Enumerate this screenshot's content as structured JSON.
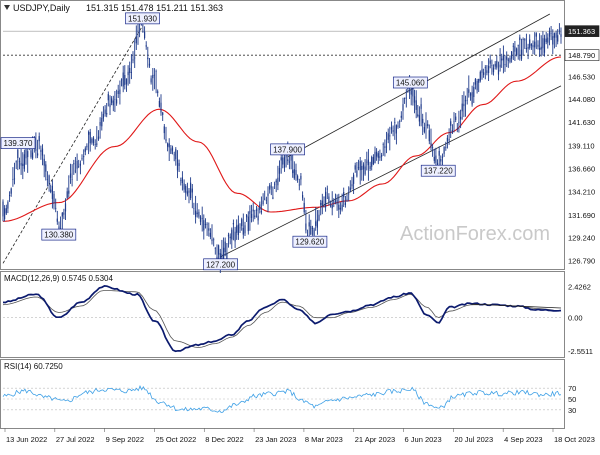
{
  "header": {
    "symbol": "USDJPY,Daily",
    "ohlc": "151.315 151.478 151.211 151.363"
  },
  "watermark": "ActionForex.com",
  "colors": {
    "candle": "#1e3a8a",
    "ma": "#e01818",
    "channel": "#222222",
    "macd": "#0b1a6e",
    "signal": "#555555",
    "rsi": "#3ea0e6",
    "grid": "#bbbbbb",
    "label_box_fill": "#eef0ff",
    "label_box_border": "#1a2a8a"
  },
  "chart_data": [
    {
      "type": "candlestick",
      "panel": "price",
      "title": "USDJPY,Daily",
      "y_ticks": [
        126.79,
        129.24,
        131.69,
        134.21,
        136.66,
        139.11,
        141.63,
        144.08,
        146.53,
        148.79,
        151.363
      ],
      "y_tick_labels": [
        "126.790",
        "129.240",
        "131.690",
        "134.210",
        "136.660",
        "139.110",
        "141.630",
        "144.080",
        "146.530",
        "148.790",
        "151.363"
      ],
      "ylim": [
        126.0,
        153.2
      ],
      "current_price": 151.363,
      "current_price_label": "151.363",
      "resistance_level": 148.79,
      "resistance_label": "148.790",
      "x_labels": [
        "13 Jun 2022",
        "27 Jul 2022",
        "9 Sep 2022",
        "25 Oct 2022",
        "8 Dec 2022",
        "23 Jan 2023",
        "8 Mar 2023",
        "21 Apr 2023",
        "6 Jun 2023",
        "20 Jul 2023",
        "4 Sep 2023",
        "18 Oct 2023"
      ],
      "x_index_range": [
        0,
        100
      ],
      "anchors": [
        [
          0,
          131.8
        ],
        [
          3,
          137.5
        ],
        [
          6,
          139.37
        ],
        [
          9,
          134.0
        ],
        [
          10,
          130.38
        ],
        [
          13,
          137.0
        ],
        [
          16,
          139.5
        ],
        [
          19,
          143.5
        ],
        [
          22,
          146.0
        ],
        [
          25,
          151.93
        ],
        [
          27,
          146.0
        ],
        [
          30,
          139.0
        ],
        [
          33,
          134.0
        ],
        [
          36,
          131.0
        ],
        [
          39,
          127.2
        ],
        [
          42,
          130.0
        ],
        [
          45,
          131.5
        ],
        [
          48,
          134.0
        ],
        [
          51,
          137.9
        ],
        [
          53,
          135.5
        ],
        [
          55,
          129.62
        ],
        [
          58,
          133.5
        ],
        [
          61,
          133.0
        ],
        [
          64,
          137.0
        ],
        [
          67,
          137.5
        ],
        [
          70,
          140.5
        ],
        [
          73,
          145.06
        ],
        [
          76,
          141.0
        ],
        [
          78,
          137.22
        ],
        [
          81,
          141.5
        ],
        [
          84,
          145.0
        ],
        [
          87,
          147.5
        ],
        [
          90,
          148.0
        ],
        [
          93,
          149.5
        ],
        [
          96,
          150.0
        ],
        [
          98,
          150.5
        ],
        [
          100,
          151.363
        ]
      ],
      "ma_anchors": [
        [
          0,
          131.0
        ],
        [
          10,
          133.0
        ],
        [
          20,
          139.0
        ],
        [
          28,
          143.0
        ],
        [
          35,
          139.5
        ],
        [
          42,
          134.0
        ],
        [
          48,
          132.0
        ],
        [
          56,
          132.5
        ],
        [
          62,
          133.2
        ],
        [
          68,
          135.0
        ],
        [
          74,
          138.0
        ],
        [
          80,
          140.5
        ],
        [
          86,
          143.5
        ],
        [
          92,
          146.0
        ],
        [
          100,
          148.6
        ]
      ],
      "channel_lines": [
        {
          "from": [
            0,
            126.5
          ],
          "to": [
            25,
            151.93
          ]
        },
        {
          "from": [
            39,
            127.2
          ],
          "to": [
            100,
            145.5
          ]
        },
        {
          "from": [
            51,
            137.9
          ],
          "to": [
            98,
            153.2
          ]
        }
      ],
      "annotations": [
        {
          "label": "151.930",
          "x": 25,
          "y": 151.93,
          "side": "above"
        },
        {
          "label": "139.370",
          "x": 6,
          "y": 139.37,
          "side": "left"
        },
        {
          "label": "130.380",
          "x": 10,
          "y": 130.38,
          "side": "below"
        },
        {
          "label": "127.200",
          "x": 39,
          "y": 127.2,
          "side": "below"
        },
        {
          "label": "137.900",
          "x": 51,
          "y": 137.9,
          "side": "above"
        },
        {
          "label": "129.620",
          "x": 55,
          "y": 129.62,
          "side": "below"
        },
        {
          "label": "145.060",
          "x": 73,
          "y": 145.06,
          "side": "above"
        },
        {
          "label": "137.220",
          "x": 78,
          "y": 137.22,
          "side": "below"
        }
      ]
    },
    {
      "type": "line",
      "panel": "macd",
      "title": "MACD(12,26,9) 0.5745 0.5304",
      "ylim": [
        -2.8,
        2.6
      ],
      "y_tick_labels": [
        "2.4262",
        "0.00",
        "-2.5511"
      ],
      "y_ticks": [
        2.4262,
        0.0,
        -2.5511
      ],
      "series": [
        {
          "name": "MACD",
          "anchors": [
            [
              0,
              1.2
            ],
            [
              6,
              1.8
            ],
            [
              10,
              0.0
            ],
            [
              14,
              1.2
            ],
            [
              18,
              2.4
            ],
            [
              24,
              1.8
            ],
            [
              27,
              -0.2
            ],
            [
              31,
              -2.55
            ],
            [
              35,
              -2.1
            ],
            [
              38,
              -1.8
            ],
            [
              41,
              -1.3
            ],
            [
              44,
              -0.2
            ],
            [
              47,
              0.8
            ],
            [
              50,
              1.4
            ],
            [
              53,
              0.6
            ],
            [
              56,
              -0.4
            ],
            [
              59,
              0.3
            ],
            [
              62,
              0.5
            ],
            [
              66,
              1.0
            ],
            [
              70,
              1.6
            ],
            [
              73,
              1.9
            ],
            [
              76,
              0.2
            ],
            [
              78,
              -0.4
            ],
            [
              80,
              0.8
            ],
            [
              84,
              1.1
            ],
            [
              88,
              1.0
            ],
            [
              92,
              0.9
            ],
            [
              96,
              0.6
            ],
            [
              100,
              0.5745
            ]
          ]
        },
        {
          "name": "Signal",
          "anchors": [
            [
              0,
              1.0
            ],
            [
              6,
              1.6
            ],
            [
              10,
              0.4
            ],
            [
              14,
              0.9
            ],
            [
              18,
              2.1
            ],
            [
              24,
              2.0
            ],
            [
              27,
              0.6
            ],
            [
              31,
              -1.8
            ],
            [
              35,
              -2.3
            ],
            [
              38,
              -2.0
            ],
            [
              41,
              -1.5
            ],
            [
              44,
              -0.6
            ],
            [
              47,
              0.4
            ],
            [
              50,
              1.2
            ],
            [
              53,
              0.9
            ],
            [
              56,
              0.0
            ],
            [
              59,
              0.0
            ],
            [
              62,
              0.4
            ],
            [
              66,
              0.8
            ],
            [
              70,
              1.4
            ],
            [
              73,
              1.8
            ],
            [
              76,
              0.8
            ],
            [
              78,
              0.0
            ],
            [
              80,
              0.5
            ],
            [
              84,
              1.0
            ],
            [
              88,
              1.0
            ],
            [
              92,
              0.9
            ],
            [
              96,
              0.7
            ],
            [
              100,
              0.5304
            ]
          ]
        }
      ],
      "trendline": {
        "from": [
          84,
          1.05
        ],
        "to": [
          100,
          0.75
        ]
      }
    },
    {
      "type": "line",
      "panel": "rsi",
      "title": "RSI(14) 60.7250",
      "ylim": [
        0,
        100
      ],
      "y_ticks": [
        70,
        50,
        30
      ],
      "y_tick_labels": [
        "70",
        "50",
        "30"
      ],
      "series": [
        {
          "name": "RSI",
          "anchors": [
            [
              0,
              55
            ],
            [
              4,
              65
            ],
            [
              8,
              52
            ],
            [
              11,
              45
            ],
            [
              15,
              62
            ],
            [
              18,
              68
            ],
            [
              22,
              65
            ],
            [
              25,
              70
            ],
            [
              28,
              45
            ],
            [
              32,
              30
            ],
            [
              36,
              32
            ],
            [
              39,
              28
            ],
            [
              42,
              40
            ],
            [
              45,
              55
            ],
            [
              48,
              60
            ],
            [
              51,
              64
            ],
            [
              54,
              45
            ],
            [
              56,
              36
            ],
            [
              59,
              48
            ],
            [
              62,
              52
            ],
            [
              66,
              58
            ],
            [
              70,
              64
            ],
            [
              73,
              68
            ],
            [
              76,
              42
            ],
            [
              78,
              32
            ],
            [
              81,
              55
            ],
            [
              85,
              62
            ],
            [
              89,
              60
            ],
            [
              93,
              62
            ],
            [
              97,
              58
            ],
            [
              100,
              60.725
            ]
          ]
        }
      ]
    }
  ]
}
